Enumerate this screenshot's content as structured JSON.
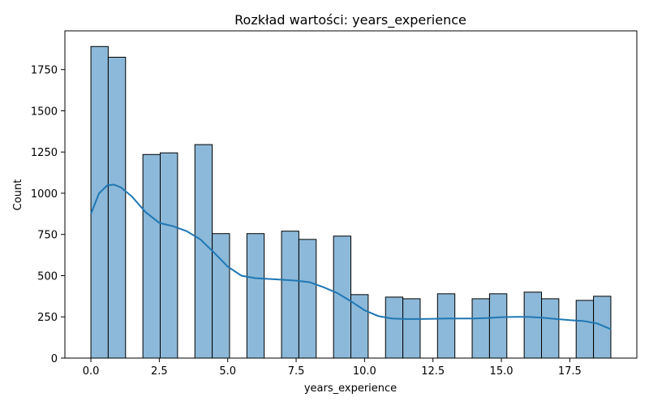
{
  "chart_data": {
    "type": "bar",
    "title": "Rozkład wartości: years_experience",
    "xlabel": "years_experience",
    "ylabel": "Count",
    "xlim": [
      -0.95,
      19.95
    ],
    "ylim": [
      0,
      1985
    ],
    "xticks": [
      0.0,
      2.5,
      5.0,
      7.5,
      10.0,
      12.5,
      15.0,
      17.5
    ],
    "xtick_labels": [
      "0.0",
      "2.5",
      "5.0",
      "7.5",
      "10.0",
      "12.5",
      "15.0",
      "17.5"
    ],
    "yticks": [
      0,
      250,
      500,
      750,
      1000,
      1250,
      1500,
      1750
    ],
    "ytick_labels": [
      "0",
      "250",
      "500",
      "750",
      "1000",
      "1250",
      "1500",
      "1750"
    ],
    "grid": false,
    "bar_color": "#8cb9d9",
    "bar_edge_color": "#000000",
    "kde_color": "#1f77b4",
    "bins": [
      {
        "start": 0.0,
        "end": 0.633,
        "value": 1890
      },
      {
        "start": 0.633,
        "end": 1.267,
        "value": 1825
      },
      {
        "start": 1.9,
        "end": 2.533,
        "value": 1235
      },
      {
        "start": 2.533,
        "end": 3.167,
        "value": 1245
      },
      {
        "start": 3.8,
        "end": 4.433,
        "value": 1295
      },
      {
        "start": 4.433,
        "end": 5.067,
        "value": 755
      },
      {
        "start": 5.7,
        "end": 6.333,
        "value": 755
      },
      {
        "start": 6.967,
        "end": 7.6,
        "value": 770
      },
      {
        "start": 7.6,
        "end": 8.233,
        "value": 720
      },
      {
        "start": 8.867,
        "end": 9.5,
        "value": 740
      },
      {
        "start": 9.5,
        "end": 10.133,
        "value": 385
      },
      {
        "start": 10.767,
        "end": 11.4,
        "value": 370
      },
      {
        "start": 11.4,
        "end": 12.033,
        "value": 360
      },
      {
        "start": 12.667,
        "end": 13.3,
        "value": 390
      },
      {
        "start": 13.933,
        "end": 14.567,
        "value": 360
      },
      {
        "start": 14.567,
        "end": 15.2,
        "value": 390
      },
      {
        "start": 15.833,
        "end": 16.467,
        "value": 400
      },
      {
        "start": 16.467,
        "end": 17.1,
        "value": 360
      },
      {
        "start": 17.733,
        "end": 18.367,
        "value": 350
      },
      {
        "start": 18.367,
        "end": 19.0,
        "value": 375
      }
    ],
    "kde": {
      "x": [
        0,
        0.3,
        0.6,
        0.85,
        1.1,
        1.5,
        2.0,
        2.5,
        3.0,
        3.5,
        4.0,
        4.5,
        5.0,
        5.5,
        6.0,
        6.5,
        7.0,
        7.5,
        8.0,
        8.5,
        9.0,
        9.5,
        10.0,
        10.5,
        11.0,
        11.5,
        12.0,
        12.5,
        13.0,
        13.5,
        14.0,
        14.5,
        15.0,
        15.5,
        16.0,
        16.5,
        17.0,
        17.5,
        18.0,
        18.5,
        19.0
      ],
      "y": [
        875,
        1000,
        1048,
        1052,
        1035,
        980,
        885,
        820,
        800,
        770,
        720,
        640,
        555,
        500,
        485,
        480,
        475,
        470,
        460,
        430,
        395,
        345,
        290,
        255,
        240,
        237,
        237,
        238,
        240,
        240,
        240,
        243,
        248,
        250,
        250,
        245,
        237,
        230,
        225,
        210,
        175
      ]
    }
  }
}
